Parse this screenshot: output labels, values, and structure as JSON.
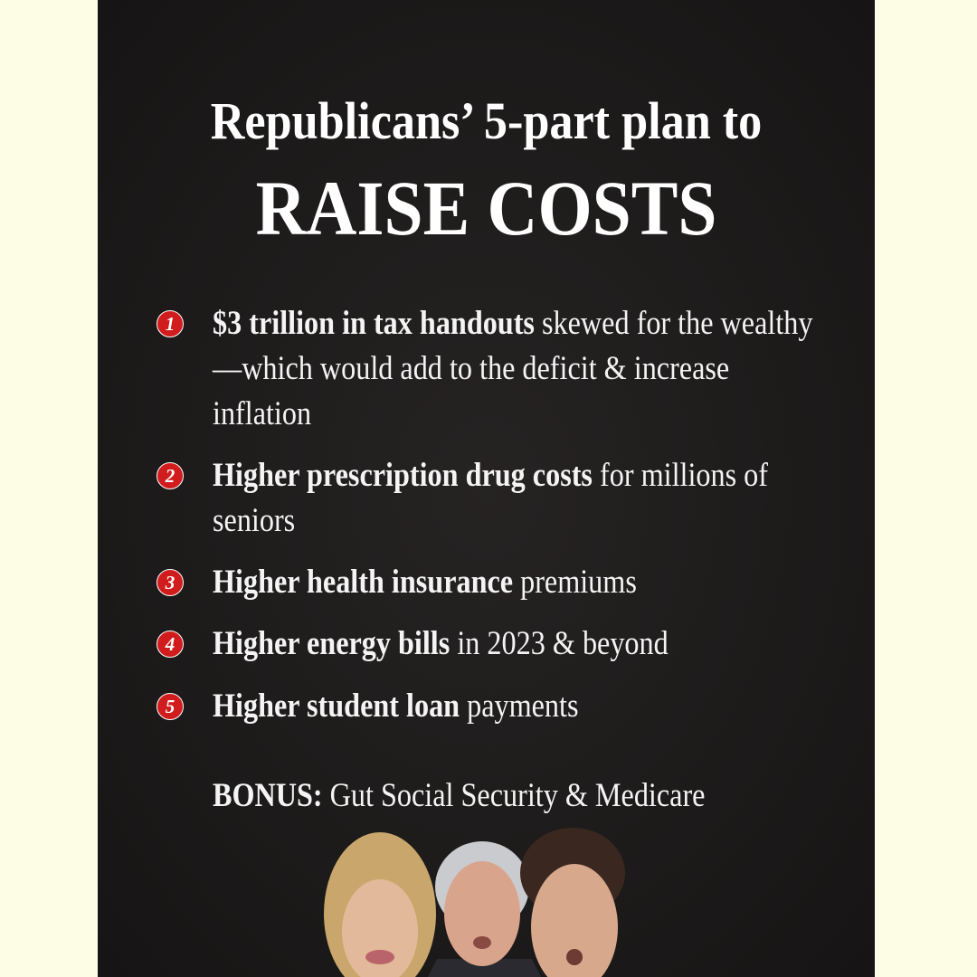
{
  "header": {
    "title_line1": "Republicans’ 5-part plan to",
    "title_line2": "RAISE COSTS"
  },
  "items": [
    {
      "number": "1",
      "bold": "$3 trillion in tax handouts",
      "rest": "skewed for the wealthy—which would add to the deficit & increase inflation"
    },
    {
      "number": "2",
      "bold": "Higher prescription drug costs",
      "rest": "for millions of seniors"
    },
    {
      "number": "3",
      "bold": "Higher health insurance",
      "rest": "premiums"
    },
    {
      "number": "4",
      "bold": "Higher energy bills",
      "rest": "in 2023 & beyond"
    },
    {
      "number": "5",
      "bold": "Higher student loan",
      "rest": "payments"
    }
  ],
  "bonus": {
    "label": "BONUS:",
    "text": "Gut Social Security & Medicare"
  }
}
